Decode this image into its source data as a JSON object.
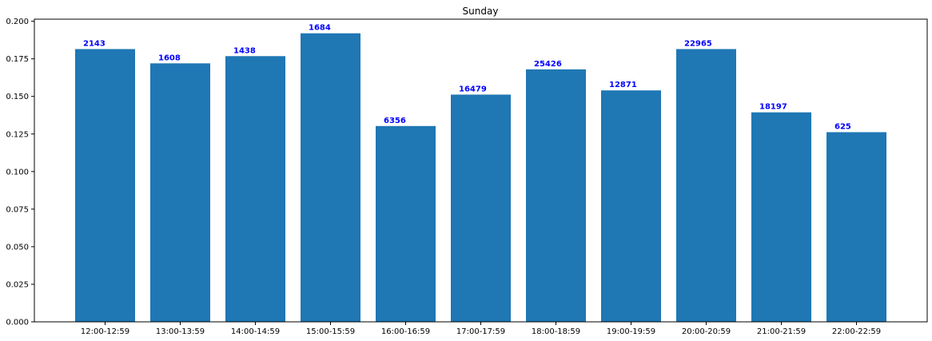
{
  "chart_data": {
    "type": "bar",
    "title": "Sunday",
    "xlabel": "",
    "ylabel": "",
    "categories": [
      "12:00-12:59",
      "13:00-13:59",
      "14:00-14:59",
      "15:00-15:59",
      "16:00-16:59",
      "17:00-17:59",
      "18:00-18:59",
      "19:00-19:59",
      "20:00-20:59",
      "21:00-21:59",
      "22:00-22:59"
    ],
    "values": [
      0.1815,
      0.172,
      0.1768,
      0.192,
      0.1303,
      0.1512,
      0.168,
      0.154,
      0.1815,
      0.1394,
      0.1262
    ],
    "data_labels": [
      "2143",
      "1608",
      "1438",
      "1684",
      "6356",
      "16479",
      "25426",
      "12871",
      "22965",
      "18197",
      "625"
    ],
    "ylim": [
      0,
      0.2014
    ],
    "yticks": [
      0.0,
      0.025,
      0.05,
      0.075,
      0.1,
      0.125,
      0.15,
      0.175,
      0.2
    ],
    "ytick_labels": [
      "0.000",
      "0.025",
      "0.050",
      "0.075",
      "0.100",
      "0.125",
      "0.150",
      "0.175",
      "0.200"
    ],
    "grid": false,
    "bar_color": "#1f77b4",
    "label_color": "#0000ff"
  }
}
